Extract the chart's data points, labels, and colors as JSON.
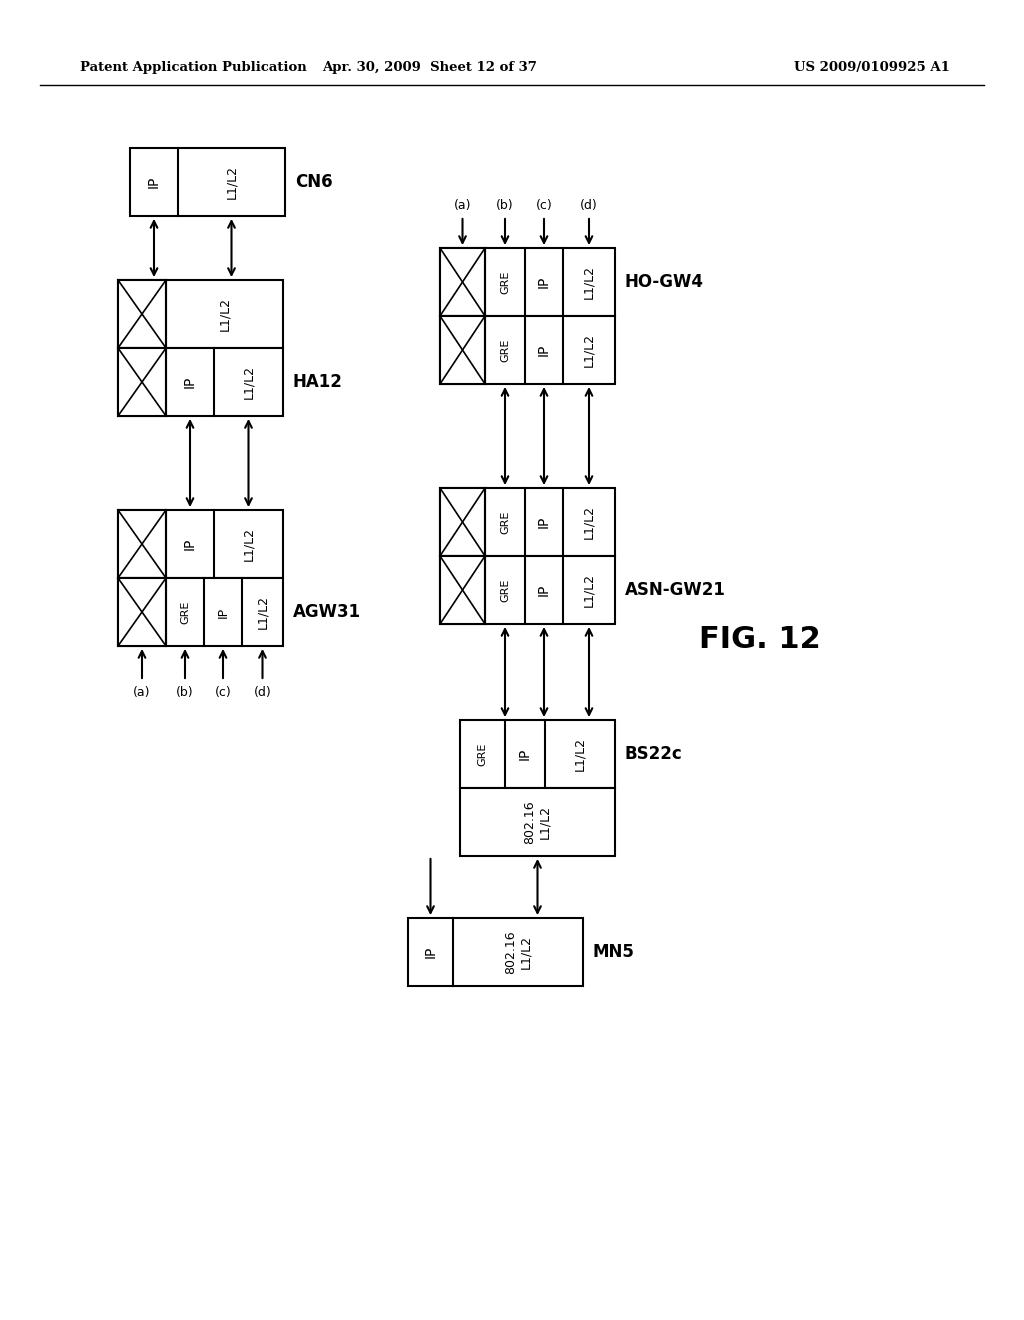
{
  "header_left": "Patent Application Publication",
  "header_mid": "Apr. 30, 2009  Sheet 12 of 37",
  "header_right": "US 2009/0109925 A1",
  "fig_label": "FIG. 12",
  "background": "#ffffff"
}
